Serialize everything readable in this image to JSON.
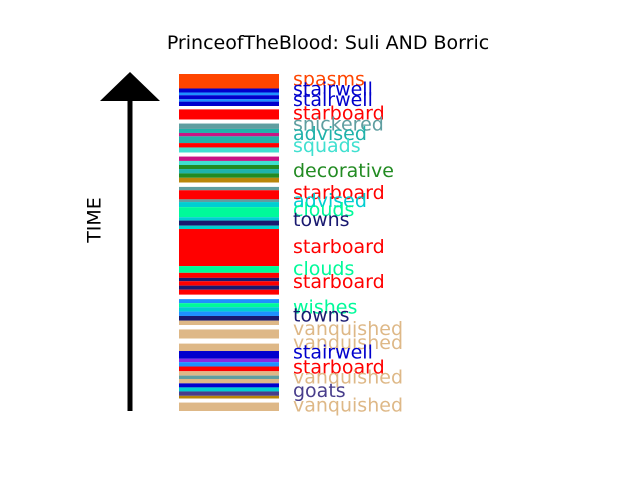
{
  "chart_data": {
    "type": "bar",
    "title": "PrinceofTheBlood: Suli AND Borric",
    "ylabel": "TIME",
    "stripes": [
      {
        "y": [
          0.0,
          0.043
        ],
        "color": "#ff4500"
      },
      {
        "y": [
          0.043,
          0.055
        ],
        "color": "#0000cd"
      },
      {
        "y": [
          0.055,
          0.063
        ],
        "color": "#1e90ff"
      },
      {
        "y": [
          0.063,
          0.075
        ],
        "color": "#0000cd"
      },
      {
        "y": [
          0.075,
          0.082
        ],
        "color": "#1e90ff"
      },
      {
        "y": [
          0.082,
          0.095
        ],
        "color": "#0000cd"
      },
      {
        "y": [
          0.095,
          0.105
        ],
        "color": "#ffffff"
      },
      {
        "y": [
          0.105,
          0.135
        ],
        "color": "#ff0000"
      },
      {
        "y": [
          0.135,
          0.147
        ],
        "color": "#ffffff"
      },
      {
        "y": [
          0.147,
          0.163
        ],
        "color": "#5f9ea0"
      },
      {
        "y": [
          0.163,
          0.175
        ],
        "color": "#20b2aa"
      },
      {
        "y": [
          0.175,
          0.185
        ],
        "color": "#c71585"
      },
      {
        "y": [
          0.185,
          0.205
        ],
        "color": "#20b2aa"
      },
      {
        "y": [
          0.205,
          0.218
        ],
        "color": "#ff0000"
      },
      {
        "y": [
          0.218,
          0.233
        ],
        "color": "#40e0d0"
      },
      {
        "y": [
          0.233,
          0.245
        ],
        "color": "#ffffff"
      },
      {
        "y": [
          0.245,
          0.258
        ],
        "color": "#c71585"
      },
      {
        "y": [
          0.258,
          0.27
        ],
        "color": "#40e0d0"
      },
      {
        "y": [
          0.27,
          0.282
        ],
        "color": "#228b22"
      },
      {
        "y": [
          0.282,
          0.295
        ],
        "color": "#20b2aa"
      },
      {
        "y": [
          0.295,
          0.308
        ],
        "color": "#228b22"
      },
      {
        "y": [
          0.308,
          0.322
        ],
        "color": "#b8860b"
      },
      {
        "y": [
          0.322,
          0.335
        ],
        "color": "#ffffff"
      },
      {
        "y": [
          0.335,
          0.345
        ],
        "color": "#5f9ea0"
      },
      {
        "y": [
          0.345,
          0.372
        ],
        "color": "#ff0000"
      },
      {
        "y": [
          0.372,
          0.38
        ],
        "color": "#5f9ea0"
      },
      {
        "y": [
          0.38,
          0.395
        ],
        "color": "#00ced1"
      },
      {
        "y": [
          0.395,
          0.425
        ],
        "color": "#00fa9a"
      },
      {
        "y": [
          0.425,
          0.435
        ],
        "color": "#00ced1"
      },
      {
        "y": [
          0.435,
          0.45
        ],
        "color": "#191970"
      },
      {
        "y": [
          0.45,
          0.46
        ],
        "color": "#00ced1"
      },
      {
        "y": [
          0.46,
          0.57
        ],
        "color": "#ff0000"
      },
      {
        "y": [
          0.57,
          0.59
        ],
        "color": "#00fa9a"
      },
      {
        "y": [
          0.59,
          0.605
        ],
        "color": "#ff0000"
      },
      {
        "y": [
          0.605,
          0.615
        ],
        "color": "#191970"
      },
      {
        "y": [
          0.615,
          0.628
        ],
        "color": "#ff0000"
      },
      {
        "y": [
          0.628,
          0.64
        ],
        "color": "#191970"
      },
      {
        "y": [
          0.64,
          0.655
        ],
        "color": "#ff0000"
      },
      {
        "y": [
          0.655,
          0.668
        ],
        "color": "#ffffff"
      },
      {
        "y": [
          0.668,
          0.68
        ],
        "color": "#1e90ff"
      },
      {
        "y": [
          0.68,
          0.692
        ],
        "color": "#00fa9a"
      },
      {
        "y": [
          0.692,
          0.705
        ],
        "color": "#00ced1"
      },
      {
        "y": [
          0.705,
          0.718
        ],
        "color": "#1e90ff"
      },
      {
        "y": [
          0.718,
          0.732
        ],
        "color": "#191970"
      },
      {
        "y": [
          0.732,
          0.745
        ],
        "color": "#deb887"
      },
      {
        "y": [
          0.745,
          0.758
        ],
        "color": "#ffffff"
      },
      {
        "y": [
          0.758,
          0.785
        ],
        "color": "#deb887"
      },
      {
        "y": [
          0.785,
          0.8
        ],
        "color": "#ffffff"
      },
      {
        "y": [
          0.8,
          0.822
        ],
        "color": "#deb887"
      },
      {
        "y": [
          0.822,
          0.845
        ],
        "color": "#0000cd"
      },
      {
        "y": [
          0.845,
          0.855
        ],
        "color": "#8a2be2"
      },
      {
        "y": [
          0.855,
          0.868
        ],
        "color": "#1e90ff"
      },
      {
        "y": [
          0.868,
          0.882
        ],
        "color": "#ff0000"
      },
      {
        "y": [
          0.882,
          0.895
        ],
        "color": "#deb887"
      },
      {
        "y": [
          0.895,
          0.905
        ],
        "color": "#5f9ea0"
      },
      {
        "y": [
          0.905,
          0.918
        ],
        "color": "#deb887"
      },
      {
        "y": [
          0.918,
          0.93
        ],
        "color": "#0000cd"
      },
      {
        "y": [
          0.93,
          0.942
        ],
        "color": "#00ced1"
      },
      {
        "y": [
          0.942,
          0.955
        ],
        "color": "#483d8b"
      },
      {
        "y": [
          0.955,
          0.963
        ],
        "color": "#b8860b"
      },
      {
        "y": [
          0.963,
          0.975
        ],
        "color": "#ffffff"
      },
      {
        "y": [
          0.975,
          1.0
        ],
        "color": "#deb887"
      }
    ],
    "labels": [
      {
        "text": "spasms",
        "y": 0.018,
        "color": "#ff4500"
      },
      {
        "text": "stairwell",
        "y": 0.048,
        "color": "#0000cd"
      },
      {
        "text": "stairwell",
        "y": 0.078,
        "color": "#0000cd"
      },
      {
        "text": "starboard",
        "y": 0.118,
        "color": "#ff0000"
      },
      {
        "text": "snickered",
        "y": 0.152,
        "color": "#5f9ea0"
      },
      {
        "text": "advised",
        "y": 0.18,
        "color": "#20b2aa"
      },
      {
        "text": "squads",
        "y": 0.215,
        "color": "#40e0d0"
      },
      {
        "text": "decorative",
        "y": 0.29,
        "color": "#228b22"
      },
      {
        "text": "starboard",
        "y": 0.355,
        "color": "#ff0000"
      },
      {
        "text": "advised",
        "y": 0.378,
        "color": "#00ced1"
      },
      {
        "text": "clouds",
        "y": 0.405,
        "color": "#00fa9a"
      },
      {
        "text": "towns",
        "y": 0.435,
        "color": "#191970"
      },
      {
        "text": "starboard",
        "y": 0.515,
        "color": "#ff0000"
      },
      {
        "text": "clouds",
        "y": 0.58,
        "color": "#00fa9a"
      },
      {
        "text": "starboard",
        "y": 0.618,
        "color": "#ff0000"
      },
      {
        "text": "wishes",
        "y": 0.695,
        "color": "#00fa9a"
      },
      {
        "text": "towns",
        "y": 0.718,
        "color": "#191970"
      },
      {
        "text": "vanquished",
        "y": 0.758,
        "color": "#deb887"
      },
      {
        "text": "vanquished",
        "y": 0.8,
        "color": "#deb887"
      },
      {
        "text": "stairwell",
        "y": 0.828,
        "color": "#0000cd"
      },
      {
        "text": "starboard",
        "y": 0.872,
        "color": "#ff0000"
      },
      {
        "text": "vanquished",
        "y": 0.902,
        "color": "#deb887"
      },
      {
        "text": "goats",
        "y": 0.942,
        "color": "#483d8b"
      },
      {
        "text": "vanquished",
        "y": 0.985,
        "color": "#deb887"
      }
    ]
  }
}
